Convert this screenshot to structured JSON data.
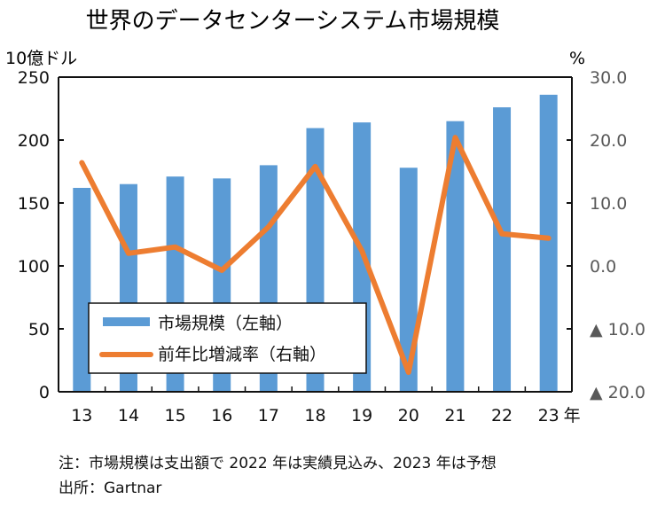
{
  "chart_data": {
    "type": "bar+line",
    "title": "世界のデータセンターシステム市場規模",
    "categories": [
      "13",
      "14",
      "15",
      "16",
      "17",
      "18",
      "19",
      "20",
      "21",
      "22",
      "23"
    ],
    "x_suffix": "年",
    "left_axis": {
      "label": "10億ドル",
      "range": [
        0,
        250
      ],
      "ticks": [
        0,
        50,
        100,
        150,
        200,
        250
      ],
      "tick_labels": [
        "0",
        "50",
        "100",
        "150",
        "200",
        "250"
      ]
    },
    "right_axis": {
      "label": "%",
      "range": [
        -20,
        30
      ],
      "ticks": [
        -20,
        -10,
        0,
        10,
        20,
        30
      ],
      "tick_labels": [
        "▲ 20.0",
        "▲ 10.0",
        "0.0",
        "10.0",
        "20.0",
        "30.0"
      ]
    },
    "series": [
      {
        "name": "市場規模（左軸）",
        "type": "bar",
        "axis": "left",
        "color": "#5b9bd5",
        "values": [
          162,
          165,
          171,
          169.5,
          180,
          209.5,
          214,
          178,
          215,
          226,
          236
        ]
      },
      {
        "name": "前年比増減率（右軸）",
        "type": "line",
        "axis": "right",
        "color": "#ed7d31",
        "values": [
          16.4,
          2.0,
          3.0,
          -0.7,
          6.2,
          15.8,
          2.4,
          -16.9,
          20.4,
          5.1,
          4.4
        ]
      }
    ],
    "legend_position": "lower-left (inside)",
    "grid": false
  },
  "notes": {
    "note": "注：市場規模は支出額で 2022 年は実績見込み、2023 年は予想",
    "source": "出所：Gartnar"
  }
}
